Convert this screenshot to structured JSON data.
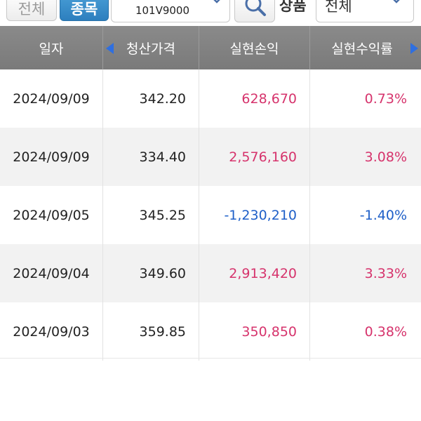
{
  "filters": {
    "all_label": "전체",
    "item_label": "종목",
    "item_code": "101V9000",
    "product_label": "상품",
    "product_value": "전체"
  },
  "table": {
    "headers": [
      "일자",
      "청산가격",
      "실현손익",
      "실현수익률"
    ],
    "rows": [
      {
        "date": "2024/09/09",
        "price": "342.20",
        "pnl": "628,670",
        "rate": "0.73%",
        "sign": "pos"
      },
      {
        "date": "2024/09/09",
        "price": "334.40",
        "pnl": "2,576,160",
        "rate": "3.08%",
        "sign": "pos"
      },
      {
        "date": "2024/09/05",
        "price": "345.25",
        "pnl": "-1,230,210",
        "rate": "-1.40%",
        "sign": "neg"
      },
      {
        "date": "2024/09/04",
        "price": "349.60",
        "pnl": "2,913,420",
        "rate": "3.33%",
        "sign": "pos"
      },
      {
        "date": "2024/09/03",
        "price": "359.85",
        "pnl": "350,850",
        "rate": "0.38%",
        "sign": "pos"
      }
    ]
  },
  "colors": {
    "positive": "#d6336c",
    "negative": "#1e5fc8",
    "header_bg": "#808080",
    "nav_arrow": "#2f6fe0"
  },
  "icons": {
    "search": "magnifier-icon",
    "dropdown": "chevron-down-icon",
    "prev_column": "arrow-left-icon",
    "next_column": "arrow-right-icon"
  }
}
